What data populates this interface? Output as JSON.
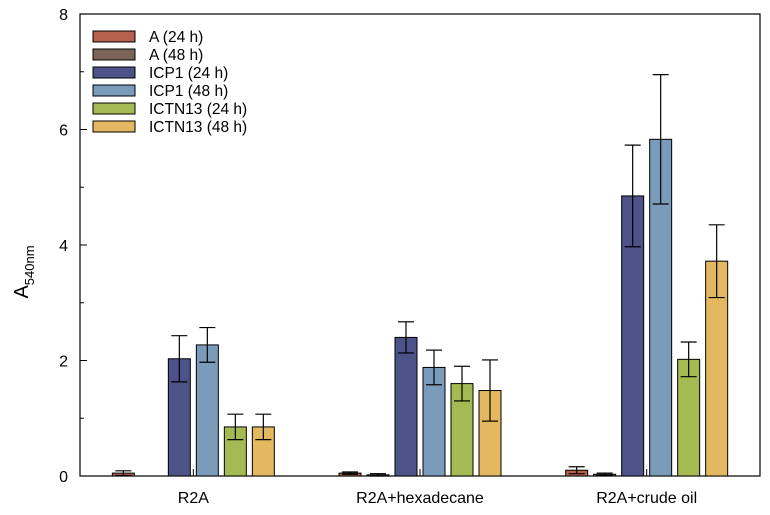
{
  "chart_data": {
    "type": "bar",
    "title": "",
    "xlabel": "",
    "ylabel": "A",
    "ylabel_subscript": "540nm",
    "ylim": [
      0,
      8
    ],
    "yticks": [
      0,
      2,
      4,
      6,
      8
    ],
    "ytick_labels": [
      "0",
      "2",
      "4",
      "6",
      "8"
    ],
    "grid": false,
    "legend_position": "top-left",
    "categories": [
      "R2A",
      "R2A+hexadecane",
      "R2A+crude oil"
    ],
    "series": [
      {
        "name": "A (24 h)",
        "color": "#b5614d",
        "values": [
          0.05,
          0.05,
          0.1
        ],
        "errors": [
          0.04,
          0.02,
          0.06
        ]
      },
      {
        "name": "A (48 h)",
        "color": "#7b6457",
        "values": [
          0.0,
          0.02,
          0.03
        ],
        "errors": [
          0.0,
          0.02,
          0.02
        ]
      },
      {
        "name": "ICP1 (24 h)",
        "color": "#4d5288",
        "values": [
          2.03,
          2.4,
          4.85
        ],
        "errors": [
          0.4,
          0.27,
          0.88
        ]
      },
      {
        "name": "ICP1 (48 h)",
        "color": "#7b9bbb",
        "values": [
          2.27,
          1.88,
          5.83
        ],
        "errors": [
          0.3,
          0.3,
          1.12
        ]
      },
      {
        "name": "ICTN13 (24 h)",
        "color": "#a5ba52",
        "values": [
          0.85,
          1.6,
          2.02
        ],
        "errors": [
          0.22,
          0.3,
          0.3
        ]
      },
      {
        "name": "ICTN13 (48 h)",
        "color": "#e3b860",
        "values": [
          0.85,
          1.48,
          3.72
        ],
        "errors": [
          0.22,
          0.53,
          0.63
        ]
      }
    ]
  }
}
